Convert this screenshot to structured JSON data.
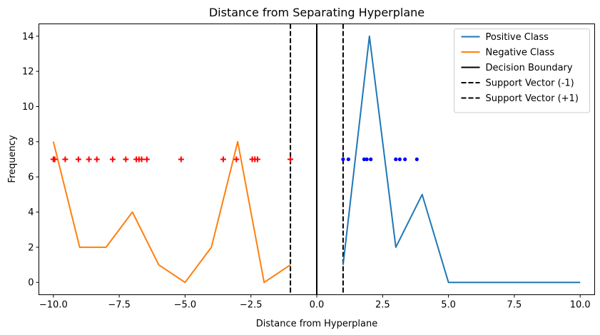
{
  "chart_data": {
    "type": "line",
    "title": "Distance from Separating Hyperplane",
    "xlabel": "Distance from Hyperplane",
    "ylabel": "Frequency",
    "xlim": [
      -10.55,
      10.55
    ],
    "ylim": [
      -0.7,
      14.7
    ],
    "xticks": [
      -10.0,
      -7.5,
      -5.0,
      -2.5,
      0.0,
      2.5,
      5.0,
      7.5,
      10.0
    ],
    "xtick_labels": [
      "−10.0",
      "−7.5",
      "−5.0",
      "−2.5",
      "0.0",
      "2.5",
      "5.0",
      "7.5",
      "10.0"
    ],
    "yticks": [
      0,
      2,
      4,
      6,
      8,
      10,
      12,
      14
    ],
    "ytick_labels": [
      "0",
      "2",
      "4",
      "6",
      "8",
      "10",
      "12",
      "14"
    ],
    "grid": false,
    "legend_position": "top-right",
    "series": [
      {
        "name": "Positive Class",
        "color": "#1f77b4",
        "x": [
          1,
          2,
          3,
          4,
          5,
          6,
          7,
          8,
          9,
          10
        ],
        "y": [
          1,
          14,
          2,
          5,
          0,
          0,
          0,
          0,
          0,
          0
        ]
      },
      {
        "name": "Negative Class",
        "color": "#ff7f0e",
        "x": [
          -10,
          -9,
          -8,
          -7,
          -6,
          -5,
          -4,
          -3,
          -2,
          -1
        ],
        "y": [
          8,
          2,
          2,
          4,
          1,
          0,
          2,
          8,
          0,
          1
        ]
      }
    ],
    "vlines": [
      {
        "name": "Decision Boundary",
        "x": 0,
        "style": "solid",
        "color": "#000000"
      },
      {
        "name": "Support Vector (-1)",
        "x": -1,
        "style": "dashed",
        "color": "#000000"
      },
      {
        "name": "Support Vector (+1)",
        "x": 1,
        "style": "dashed",
        "color": "#000000"
      }
    ],
    "scatter": [
      {
        "marker": "plus",
        "color": "#ff0000",
        "y": 7,
        "x": [
          -10.0,
          -9.95,
          -9.55,
          -9.05,
          -8.65,
          -8.35,
          -7.75,
          -7.25,
          -6.85,
          -6.75,
          -6.65,
          -6.45,
          -5.15,
          -3.55,
          -3.05,
          -2.45,
          -2.35,
          -2.25,
          -1.0
        ]
      },
      {
        "marker": "dot",
        "color": "#0000ff",
        "y": 7,
        "x": [
          1.0,
          1.2,
          1.8,
          1.9,
          2.05,
          3.0,
          3.15,
          3.35,
          3.8
        ]
      }
    ]
  }
}
